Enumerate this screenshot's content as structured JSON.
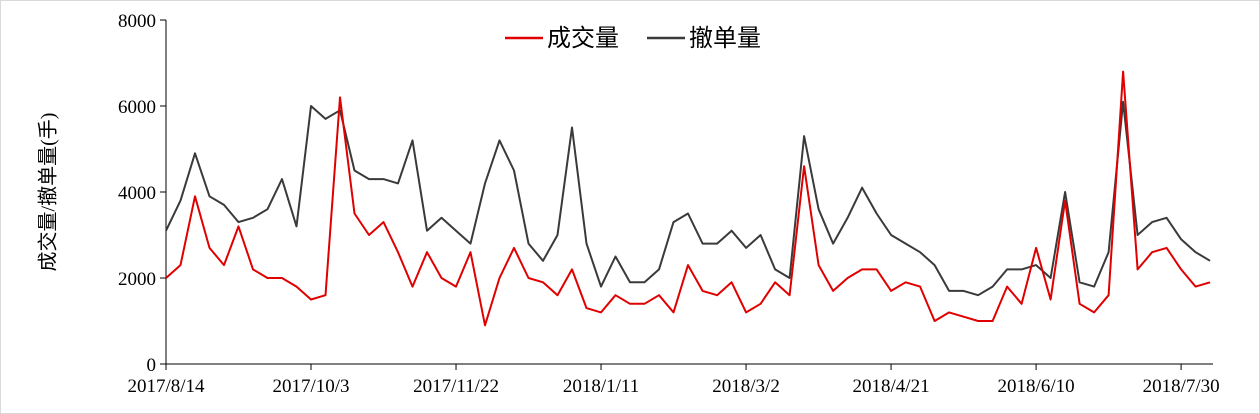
{
  "chart_data": {
    "type": "line",
    "y_label": "成交量/撤单量(手)",
    "x": [
      "2017/8/14",
      "2017/8/19",
      "2017/8/24",
      "2017/8/29",
      "2017/9/3",
      "2017/9/8",
      "2017/9/13",
      "2017/9/18",
      "2017/9/23",
      "2017/9/28",
      "2017/10/3",
      "2017/10/8",
      "2017/10/13",
      "2017/10/18",
      "2017/10/23",
      "2017/10/28",
      "2017/11/2",
      "2017/11/7",
      "2017/11/12",
      "2017/11/17",
      "2017/11/22",
      "2017/11/27",
      "2017/12/2",
      "2017/12/7",
      "2017/12/12",
      "2017/12/17",
      "2017/12/22",
      "2017/12/27",
      "2018/1/1",
      "2018/1/6",
      "2018/1/11",
      "2018/1/16",
      "2018/1/21",
      "2018/1/26",
      "2018/1/31",
      "2018/2/5",
      "2018/2/10",
      "2018/2/15",
      "2018/2/20",
      "2018/2/25",
      "2018/3/2",
      "2018/3/7",
      "2018/3/12",
      "2018/3/17",
      "2018/3/22",
      "2018/3/27",
      "2018/4/1",
      "2018/4/6",
      "2018/4/11",
      "2018/4/16",
      "2018/4/21",
      "2018/4/26",
      "2018/5/1",
      "2018/5/6",
      "2018/5/11",
      "2018/5/16",
      "2018/5/21",
      "2018/5/26",
      "2018/5/31",
      "2018/6/5",
      "2018/6/10",
      "2018/6/15",
      "2018/6/20",
      "2018/6/25",
      "2018/6/30",
      "2018/7/5",
      "2018/7/10",
      "2018/7/15",
      "2018/7/20",
      "2018/7/25",
      "2018/7/30",
      "2018/8/4",
      "2018/8/9"
    ],
    "series": [
      {
        "name": "成交量",
        "color": "#e00000",
        "values": [
          2000,
          2300,
          3900,
          2700,
          2300,
          3200,
          2200,
          2000,
          2000,
          1800,
          1500,
          1600,
          6200,
          3500,
          3000,
          3300,
          2600,
          1800,
          2600,
          2000,
          1800,
          2600,
          900,
          2000,
          2700,
          2000,
          1900,
          1600,
          2200,
          1300,
          1200,
          1600,
          1400,
          1400,
          1600,
          1200,
          2300,
          1700,
          1600,
          1900,
          1200,
          1400,
          1900,
          1600,
          4600,
          2300,
          1700,
          2000,
          2200,
          2200,
          1700,
          1900,
          1800,
          1000,
          1200,
          1100,
          1000,
          1000,
          1800,
          1400,
          2700,
          1500,
          3800,
          1400,
          1200,
          1600,
          6800,
          2200,
          2600,
          2700,
          2200,
          1800,
          1900
        ]
      },
      {
        "name": "撤单量",
        "color": "#3a3a3a",
        "values": [
          3100,
          3800,
          4900,
          3900,
          3700,
          3300,
          3400,
          3600,
          4300,
          3200,
          6000,
          5700,
          5900,
          4500,
          4300,
          4300,
          4200,
          5200,
          3100,
          3400,
          3100,
          2800,
          4200,
          5200,
          4500,
          2800,
          2400,
          3000,
          5500,
          2800,
          1800,
          2500,
          1900,
          1900,
          2200,
          3300,
          3500,
          2800,
          2800,
          3100,
          2700,
          3000,
          2200,
          2000,
          5300,
          3600,
          2800,
          3400,
          4100,
          3500,
          3000,
          2800,
          2600,
          2300,
          1700,
          1700,
          1600,
          1800,
          2200,
          2200,
          2300,
          2000,
          4000,
          1900,
          1800,
          2600,
          6100,
          3000,
          3300,
          3400,
          2900,
          2600,
          2400
        ]
      }
    ],
    "xlim": [
      "2017/8/14",
      "2018/8/10"
    ],
    "xticks": [
      "2017/8/14",
      "2017/10/3",
      "2017/11/22",
      "2018/1/11",
      "2018/3/2",
      "2018/4/21",
      "2018/6/10",
      "2018/7/30"
    ],
    "ylim": [
      0,
      8000
    ],
    "yticks": [
      0,
      2000,
      4000,
      6000,
      8000
    ],
    "legend": "top"
  }
}
